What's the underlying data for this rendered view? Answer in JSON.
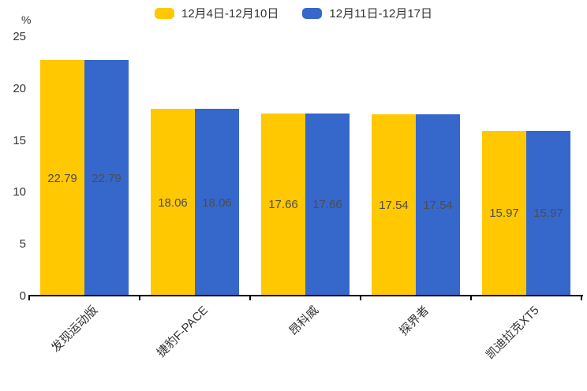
{
  "chart_data": {
    "type": "bar",
    "title": "",
    "categories": [
      "发现运动版",
      "捷豹F-PACE",
      "昂科威",
      "探界者",
      "凯迪拉克XT5"
    ],
    "series": [
      {
        "name": "12月4日-12月10日",
        "color": "#FFC800",
        "values": [
          22.79,
          18.06,
          17.66,
          17.54,
          15.97
        ]
      },
      {
        "name": "12月11日-12月17日",
        "color": "#3667CB",
        "values": [
          22.79,
          18.06,
          17.66,
          17.54,
          15.97
        ]
      }
    ],
    "xlabel": "",
    "ylabel": "%",
    "ylim": [
      0,
      25
    ],
    "yticks": [
      0,
      5,
      10,
      15,
      20,
      25
    ],
    "legend_position": "top",
    "grid": false,
    "data_label_color": "#4d4d4d",
    "axis_color": "#000000",
    "text_color": "#333333"
  }
}
